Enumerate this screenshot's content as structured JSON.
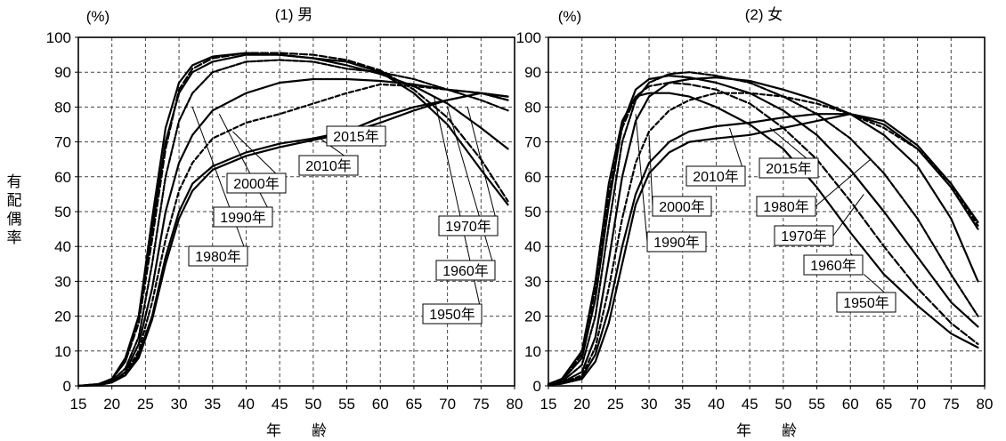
{
  "ylabel": "有配偶率",
  "xlabel": "年　　齢",
  "chart_data": [
    {
      "type": "line",
      "title": "(1) 男",
      "unit": "(%)",
      "xlabel": "年　　齢",
      "ylabel": "有配偶率",
      "xlim": [
        15,
        80
      ],
      "ylim": [
        0,
        100
      ],
      "xticks": [
        15,
        20,
        25,
        30,
        35,
        40,
        45,
        50,
        55,
        60,
        65,
        70,
        75,
        80
      ],
      "yticks": [
        0,
        10,
        20,
        30,
        40,
        50,
        60,
        70,
        80,
        90,
        100
      ],
      "grid": true,
      "series": [
        {
          "name": "1950年",
          "x": [
            15,
            18,
            20,
            22,
            24,
            26,
            28,
            30,
            32,
            35,
            40,
            45,
            50,
            55,
            60,
            65,
            70,
            75,
            79
          ],
          "y": [
            0,
            0.5,
            2,
            8,
            20,
            45,
            70,
            84,
            90,
            93,
            95,
            95,
            94,
            93,
            90,
            84,
            75,
            62,
            52
          ]
        },
        {
          "name": "1960年",
          "x": [
            15,
            18,
            20,
            22,
            24,
            26,
            28,
            30,
            32,
            35,
            40,
            45,
            50,
            55,
            60,
            65,
            70,
            75,
            79
          ],
          "y": [
            0,
            0.5,
            2,
            7,
            18,
            42,
            68,
            85,
            91,
            94,
            95.5,
            95.5,
            95,
            93.5,
            90.5,
            85,
            77,
            65,
            53
          ]
        },
        {
          "name": "1970年",
          "x": [
            15,
            18,
            20,
            22,
            24,
            26,
            28,
            30,
            32,
            35,
            40,
            45,
            50,
            55,
            60,
            65,
            70,
            75,
            79
          ],
          "y": [
            0,
            0.4,
            2,
            7,
            20,
            48,
            74,
            87,
            92,
            94.5,
            95.5,
            95,
            94,
            92,
            89.5,
            86,
            81,
            74,
            68
          ]
        },
        {
          "name": "1980年",
          "x": [
            15,
            18,
            20,
            22,
            24,
            26,
            28,
            30,
            32,
            35,
            40,
            45,
            50,
            55,
            60,
            65,
            70,
            75,
            79
          ],
          "y": [
            0,
            0.3,
            1.5,
            5,
            14,
            35,
            60,
            76,
            84,
            90,
            93,
            93.5,
            93,
            91,
            90,
            88,
            85,
            82,
            79
          ]
        },
        {
          "name": "1990年",
          "x": [
            15,
            18,
            20,
            22,
            24,
            26,
            28,
            30,
            32,
            35,
            40,
            45,
            50,
            55,
            60,
            65,
            70,
            75,
            79
          ],
          "y": [
            0,
            0.3,
            1,
            4,
            12,
            28,
            50,
            64,
            72,
            79,
            84,
            87,
            88,
            88,
            87.5,
            86.5,
            85,
            84,
            82
          ]
        },
        {
          "name": "2000年",
          "x": [
            15,
            18,
            20,
            22,
            24,
            26,
            28,
            30,
            32,
            35,
            40,
            45,
            50,
            55,
            60,
            65,
            70,
            75,
            79
          ],
          "y": [
            0,
            0.3,
            1,
            3.5,
            10,
            24,
            42,
            56,
            64,
            71,
            75.5,
            78,
            81,
            84,
            86.5,
            86,
            85,
            84,
            82
          ]
        },
        {
          "name": "2010年",
          "x": [
            15,
            18,
            20,
            22,
            24,
            26,
            28,
            30,
            32,
            35,
            40,
            45,
            50,
            55,
            60,
            65,
            70,
            75,
            79
          ],
          "y": [
            0,
            0.2,
            1,
            3,
            9,
            20,
            37,
            50,
            58,
            63,
            67,
            69.5,
            71,
            73,
            77,
            80,
            82,
            84,
            83
          ]
        },
        {
          "name": "2015年",
          "x": [
            15,
            18,
            20,
            22,
            24,
            26,
            28,
            30,
            32,
            35,
            40,
            45,
            50,
            55,
            60,
            65,
            70,
            75,
            79
          ],
          "y": [
            0,
            0.2,
            1,
            3,
            8,
            19,
            35,
            48,
            56,
            62,
            66,
            68.5,
            70.5,
            72.5,
            75.5,
            79,
            82,
            84,
            83
          ]
        }
      ],
      "annotations": [
        "1950年",
        "1960年",
        "1970年",
        "1980年",
        "1990年",
        "2000年",
        "2010年",
        "2015年"
      ]
    },
    {
      "type": "line",
      "title": "(2) 女",
      "unit": "(%)",
      "xlabel": "年　　齢",
      "ylabel": "有配偶率",
      "xlim": [
        15,
        80
      ],
      "ylim": [
        0,
        100
      ],
      "xticks": [
        15,
        20,
        25,
        30,
        35,
        40,
        45,
        50,
        55,
        60,
        65,
        70,
        75,
        80
      ],
      "yticks": [
        0,
        10,
        20,
        30,
        40,
        50,
        60,
        70,
        80,
        90,
        100
      ],
      "grid": true,
      "series": [
        {
          "name": "1950年",
          "x": [
            15,
            17,
            20,
            22,
            24,
            26,
            28,
            30,
            33,
            36,
            40,
            45,
            50,
            55,
            60,
            65,
            70,
            75,
            79
          ],
          "y": [
            0.5,
            2,
            10,
            30,
            58,
            76,
            83,
            84,
            84,
            83,
            80,
            75,
            68,
            57,
            44,
            32,
            23,
            15,
            11
          ]
        },
        {
          "name": "1960年",
          "x": [
            15,
            17,
            20,
            22,
            24,
            26,
            28,
            30,
            33,
            36,
            40,
            45,
            50,
            55,
            60,
            65,
            70,
            75,
            79
          ],
          "y": [
            0.5,
            2,
            9,
            28,
            55,
            74,
            83,
            86,
            87,
            86.5,
            85,
            81,
            74,
            65,
            53,
            40,
            28,
            18,
            12
          ]
        },
        {
          "name": "1970年",
          "x": [
            15,
            17,
            20,
            22,
            24,
            26,
            28,
            30,
            33,
            36,
            40,
            45,
            50,
            55,
            60,
            65,
            70,
            75,
            79
          ],
          "y": [
            0.5,
            1.5,
            8,
            25,
            52,
            75,
            85,
            88,
            89,
            88.5,
            87,
            84,
            79,
            72,
            62,
            50,
            37,
            24,
            17
          ]
        },
        {
          "name": "1980年",
          "x": [
            15,
            17,
            20,
            22,
            24,
            26,
            28,
            30,
            33,
            36,
            40,
            45,
            50,
            55,
            60,
            65,
            70,
            75,
            79
          ],
          "y": [
            0.4,
            1.2,
            6,
            20,
            46,
            70,
            82,
            87,
            89.5,
            90,
            89,
            87,
            83,
            78,
            71,
            61,
            48,
            32,
            20
          ]
        },
        {
          "name": "1990年",
          "x": [
            15,
            17,
            20,
            22,
            24,
            26,
            28,
            30,
            33,
            36,
            40,
            45,
            50,
            55,
            60,
            65,
            70,
            75,
            79
          ],
          "y": [
            0.3,
            1,
            4,
            14,
            36,
            60,
            76,
            83,
            87,
            88,
            88.5,
            87.5,
            85,
            82,
            78,
            72,
            63,
            48,
            30
          ]
        },
        {
          "name": "2000年",
          "x": [
            15,
            17,
            20,
            22,
            24,
            26,
            28,
            30,
            33,
            36,
            40,
            45,
            50,
            55,
            60,
            65,
            70,
            75,
            79
          ],
          "y": [
            0.3,
            0.8,
            3,
            11,
            28,
            48,
            64,
            73,
            79,
            82,
            84,
            84,
            83,
            81,
            78,
            74,
            68,
            58,
            46
          ]
        },
        {
          "name": "2010年",
          "x": [
            15,
            17,
            20,
            22,
            24,
            26,
            28,
            30,
            33,
            36,
            40,
            45,
            50,
            55,
            60,
            65,
            70,
            75,
            79
          ],
          "y": [
            0.3,
            0.7,
            2.5,
            9,
            22,
            40,
            55,
            64,
            70,
            73,
            74.5,
            75.5,
            77,
            78,
            78,
            75,
            68,
            57,
            45
          ]
        },
        {
          "name": "2015年",
          "x": [
            15,
            17,
            20,
            22,
            24,
            26,
            28,
            30,
            33,
            36,
            40,
            45,
            50,
            55,
            60,
            65,
            70,
            75,
            79
          ],
          "y": [
            0.3,
            0.6,
            2,
            7,
            18,
            35,
            52,
            61,
            67,
            70,
            71,
            72,
            74,
            76,
            78,
            76,
            69,
            58,
            47
          ]
        }
      ],
      "annotations": [
        "1950年",
        "1960年",
        "1970年",
        "1980年",
        "1990年",
        "2000年",
        "2010年",
        "2015年"
      ]
    }
  ]
}
